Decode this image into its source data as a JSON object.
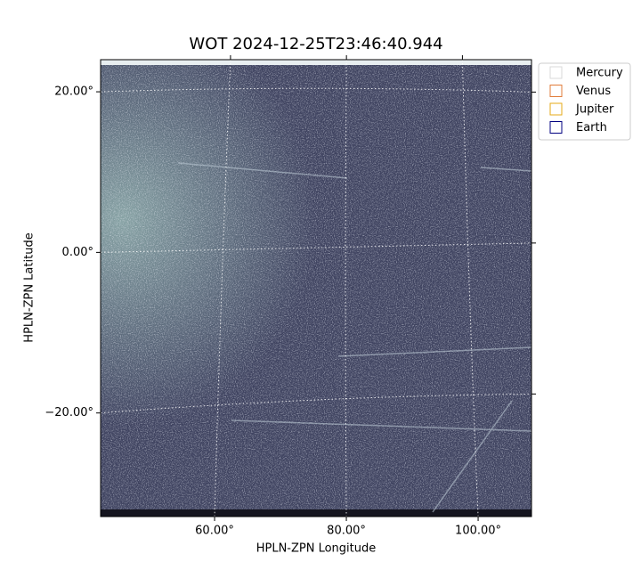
{
  "chart_data": {
    "type": "image",
    "title": "WOT 2024-12-25T23:46:40.944",
    "xlabel": "HPLN-ZPN Longitude",
    "ylabel": "HPLN-ZPN Latitude",
    "xlim": [
      42.7,
      108.1
    ],
    "ylim": [
      -32.9,
      24
    ],
    "xticks": [
      {
        "value": 60,
        "label": "60.00°"
      },
      {
        "value": 80,
        "label": "80.00°"
      },
      {
        "value": 100,
        "label": "100.00°"
      }
    ],
    "yticks": [
      {
        "value": -20,
        "label": "−20.00°"
      },
      {
        "value": 0,
        "label": "0.00°"
      },
      {
        "value": 20,
        "label": "20.00°"
      }
    ],
    "grid": true,
    "legend": "upper right",
    "series": [
      {
        "name": "Mercury",
        "color": "#d9d9d9"
      },
      {
        "name": "Venus",
        "color": "#e07b39"
      },
      {
        "name": "Jupiter",
        "color": "#e6a817"
      },
      {
        "name": "Earth",
        "color": "#000080"
      }
    ]
  }
}
